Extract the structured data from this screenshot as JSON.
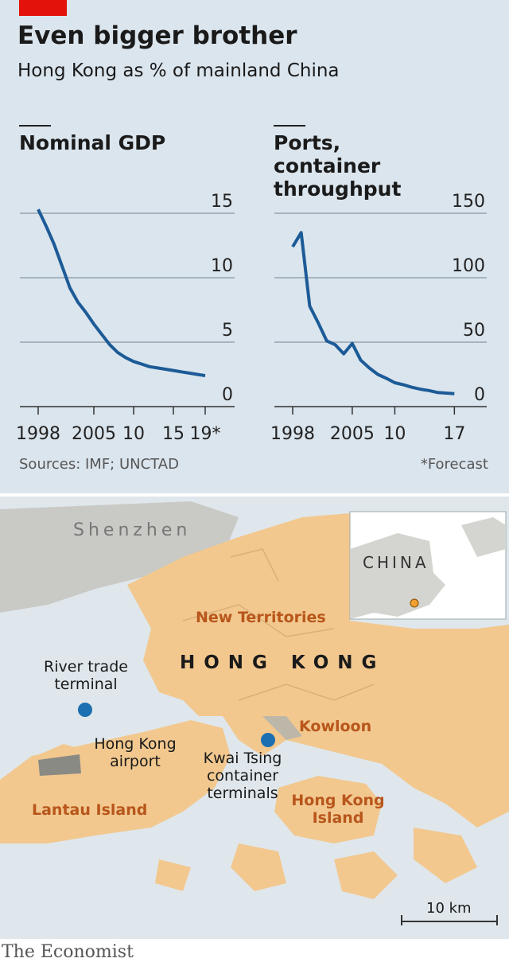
{
  "header": {
    "title": "Even bigger brother",
    "subtitle": "Hong Kong as % of mainland China"
  },
  "chart_data": [
    {
      "type": "line",
      "title": "Nominal GDP",
      "color": "#1c5b97",
      "x": [
        1998,
        1999,
        2000,
        2001,
        2002,
        2003,
        2004,
        2005,
        2006,
        2007,
        2008,
        2009,
        2010,
        2011,
        2012,
        2013,
        2014,
        2015,
        2016,
        2017,
        2018,
        2019
      ],
      "values": [
        15.3,
        14.0,
        12.6,
        10.9,
        9.2,
        8.1,
        7.3,
        6.4,
        5.6,
        4.8,
        4.2,
        3.8,
        3.5,
        3.3,
        3.1,
        3.0,
        2.9,
        2.8,
        2.7,
        2.6,
        2.5,
        2.4
      ],
      "xlim": [
        1995.7,
        2022.7
      ],
      "xticks": [
        1998,
        2005,
        {
          "value": 2010,
          "label": "10"
        },
        {
          "value": 2015,
          "label": "15"
        },
        {
          "value": 2019,
          "label": "19*"
        }
      ],
      "ylim": [
        0,
        15
      ],
      "yticks": [
        0,
        5,
        10,
        15
      ],
      "grid": true
    },
    {
      "type": "line",
      "title": "Ports, container throughput",
      "color": "#1c5b97",
      "x": [
        1998,
        1999,
        2000,
        2001,
        2002,
        2003,
        2004,
        2005,
        2006,
        2007,
        2008,
        2009,
        2010,
        2011,
        2012,
        2013,
        2014,
        2015,
        2016,
        2017
      ],
      "values": [
        124,
        135,
        78,
        65,
        51,
        48,
        41,
        49,
        36,
        30,
        25,
        22,
        18.5,
        17,
        15,
        13.5,
        12.5,
        11,
        10.5,
        10
      ],
      "xlim": [
        1995.85,
        2020.8
      ],
      "xticks": [
        1998,
        2005,
        {
          "value": 2010,
          "label": "10"
        },
        {
          "value": 2017,
          "label": "17"
        }
      ],
      "ylim": [
        0,
        150
      ],
      "yticks": [
        0,
        50,
        100,
        150
      ],
      "grid": true
    }
  ],
  "footer": {
    "source": "Sources: IMF; UNCTAD",
    "note": "*Forecast",
    "brand": "The Economist"
  },
  "map": {
    "shenzhen": "Shenzhen",
    "new_territories": "New Territories",
    "hong_kong": "HONG KONG",
    "river_trade": "River trade terminal",
    "airport": "Hong Kong airport",
    "kwai_tsing": "Kwai Tsing container terminals",
    "kowloon": "Kowloon",
    "lantau": "Lantau Island",
    "hk_island": "Hong Kong Island",
    "china": "CHINA",
    "scale": "10 km"
  }
}
